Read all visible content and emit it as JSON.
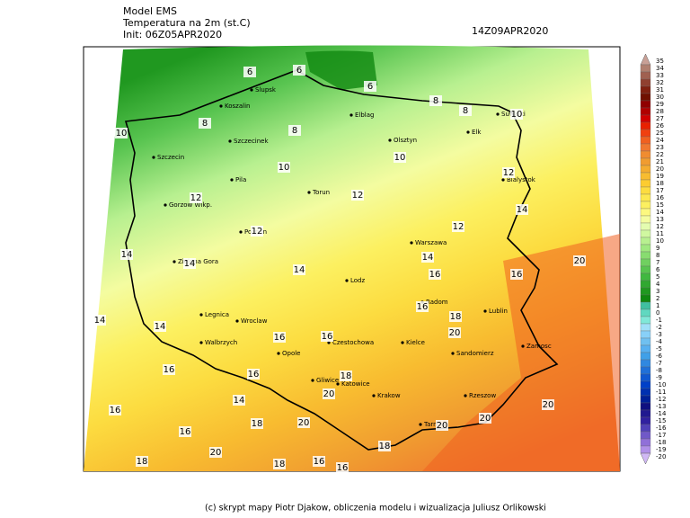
{
  "header": {
    "model": "Model EMS",
    "field": "Temperatura na 2m (st.C)",
    "init": "Init: 06Z05APR2020",
    "valid": "14Z09APR2020"
  },
  "footer": "(c) skrypt mapy Piotr Djakow, obliczenia modelu i wizualizacja Juliusz Orlikowski",
  "colorbar": {
    "levels": [
      35,
      34,
      33,
      32,
      31,
      30,
      29,
      28,
      27,
      26,
      25,
      24,
      23,
      22,
      21,
      20,
      19,
      18,
      17,
      16,
      15,
      14,
      13,
      12,
      11,
      10,
      9,
      8,
      7,
      6,
      5,
      4,
      3,
      2,
      1,
      0,
      -1,
      -2,
      -3,
      -4,
      -5,
      -6,
      -7,
      -8,
      -9,
      -10,
      -11,
      -12,
      -13,
      -14,
      -15,
      -16,
      -17,
      -18,
      -19,
      -20
    ],
    "colors": [
      "#c8a096",
      "#b08070",
      "#a06050",
      "#904030",
      "#802010",
      "#701000",
      "#900000",
      "#b00000",
      "#d00000",
      "#e82000",
      "#f04010",
      "#f06020",
      "#f07830",
      "#f08c30",
      "#f09c30",
      "#f4ac30",
      "#f8bc30",
      "#fccc30",
      "#fcdc40",
      "#fce850",
      "#fcf060",
      "#fcf880",
      "#f4fca0",
      "#e4fcb0",
      "#d0f8a0",
      "#b8f090",
      "#a0e880",
      "#88dc70",
      "#70d060",
      "#58c450",
      "#40b840",
      "#30a830",
      "#209820",
      "#108810",
      "#40c0a0",
      "#60d8c0",
      "#80e8d8",
      "#a0e0f8",
      "#88d0f8",
      "#70c0f0",
      "#58b0f0",
      "#40a0e8",
      "#3088e0",
      "#2070d8",
      "#1058d0",
      "#0040c8",
      "#0030b0",
      "#002098",
      "#101080",
      "#201890",
      "#3020a0",
      "#5040b8",
      "#7058c8",
      "#9070d8",
      "#b090e8",
      "#d0b8f4"
    ]
  },
  "cities": [
    "Slupsk",
    "Koszalin",
    "Elblag",
    "Olsztyn",
    "Elk",
    "Suwalki",
    "Szczecinek",
    "Szczecin",
    "Pila",
    "Torun",
    "Bialystok",
    "Gorzow Wlkp.",
    "Poznan",
    "Warszawa",
    "Zielona Gora",
    "Lodz",
    "Radom",
    "Lublin",
    "Legnica",
    "Wroclaw",
    "Walbrzych",
    "Opole",
    "Czestochowa",
    "Kielce",
    "Zamosc",
    "Sandomierz",
    "Gliwice",
    "Katowice",
    "Krakow",
    "Rzeszow",
    "Tarnow"
  ],
  "contour_labels": [
    6,
    6,
    6,
    8,
    8,
    10,
    10,
    8,
    8,
    10,
    10,
    12,
    12,
    12,
    14,
    12,
    12,
    14,
    14,
    16,
    16,
    20,
    14,
    14,
    14,
    14,
    16,
    18,
    16,
    16,
    20,
    16,
    16,
    18,
    20,
    14,
    16,
    18,
    20,
    20,
    20,
    20,
    16,
    20,
    18,
    18,
    16,
    18,
    16
  ]
}
